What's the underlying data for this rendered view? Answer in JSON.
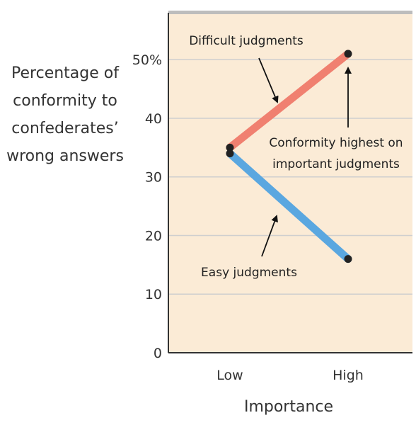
{
  "chart_data": {
    "type": "line",
    "categories": [
      "Low",
      "High"
    ],
    "series": [
      {
        "name": "Difficult judgments",
        "values": [
          35,
          51
        ],
        "color": "#f08070"
      },
      {
        "name": "Easy judgments",
        "values": [
          34,
          16
        ],
        "color": "#5aa7e0"
      }
    ],
    "ylabel_lines": [
      "Percentage of",
      "conformity to",
      "confederates’",
      "wrong answers"
    ],
    "xlabel": "Importance",
    "ylim": [
      0,
      58
    ],
    "yticks": [
      {
        "value": 0,
        "label": "0"
      },
      {
        "value": 10,
        "label": "10"
      },
      {
        "value": 20,
        "label": "20"
      },
      {
        "value": 30,
        "label": "30"
      },
      {
        "value": 40,
        "label": "40"
      },
      {
        "value": 50,
        "label": "50%"
      }
    ],
    "grid": true,
    "background_color": "#fbebd6",
    "annotations": [
      {
        "lines": [
          "Difficult judgments"
        ]
      },
      {
        "lines": [
          "Conformity highest on",
          "important judgments"
        ]
      },
      {
        "lines": [
          "Easy judgments"
        ]
      }
    ]
  }
}
